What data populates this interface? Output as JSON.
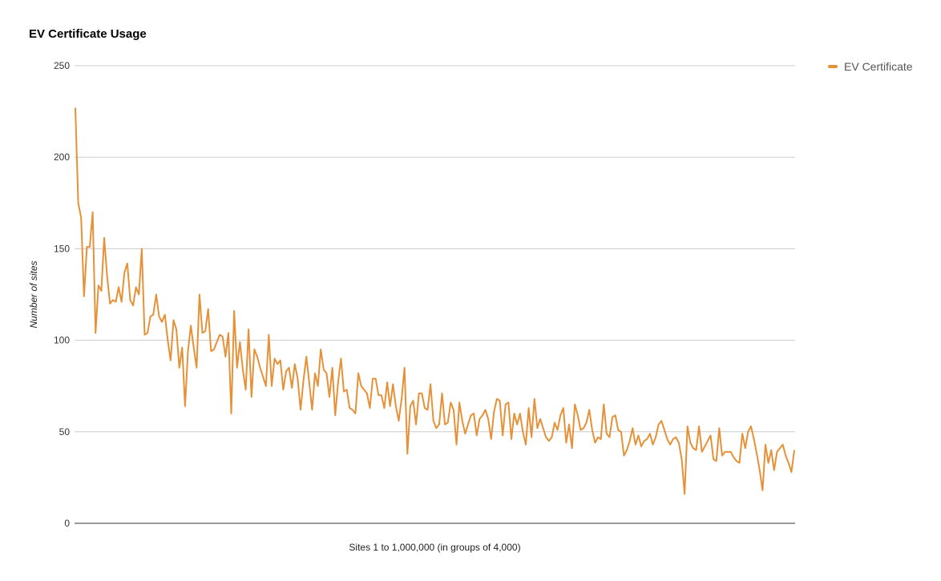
{
  "chart_data": {
    "type": "line",
    "title": "EV Certificate Usage",
    "xlabel": "Sites 1 to 1,000,000 (in groups of 4,000)",
    "ylabel": "Number of sites",
    "ylim": [
      0,
      250
    ],
    "yticks": [
      0,
      50,
      100,
      150,
      200,
      250
    ],
    "grid": true,
    "legend_position": "right",
    "series": [
      {
        "name": "EV Certificate",
        "color": "#e69138",
        "values": [
          227,
          175,
          167,
          124,
          151,
          151,
          170,
          104,
          130,
          127,
          156,
          135,
          120,
          122,
          121,
          129,
          121,
          137,
          142,
          122,
          119,
          129,
          125,
          150,
          103,
          104,
          113,
          114,
          125,
          113,
          110,
          114,
          100,
          89,
          111,
          106,
          85,
          96,
          64,
          94,
          108,
          96,
          85,
          125,
          104,
          105,
          117,
          94,
          95,
          99,
          103,
          102,
          91,
          104,
          60,
          116,
          85,
          99,
          84,
          73,
          106,
          69,
          95,
          91,
          85,
          80,
          75,
          103,
          75,
          90,
          87,
          89,
          73,
          83,
          85,
          74,
          87,
          79,
          62,
          78,
          91,
          77,
          62,
          82,
          75,
          95,
          84,
          82,
          69,
          85,
          59,
          77,
          90,
          72,
          73,
          63,
          62,
          60,
          82,
          75,
          73,
          71,
          63,
          79,
          79,
          70,
          70,
          63,
          77,
          64,
          76,
          64,
          56,
          68,
          85,
          38,
          64,
          67,
          54,
          71,
          71,
          63,
          62,
          76,
          56,
          52,
          54,
          71,
          54,
          55,
          66,
          62,
          43,
          66,
          56,
          49,
          54,
          59,
          60,
          48,
          57,
          59,
          62,
          57,
          46,
          61,
          68,
          67,
          48,
          65,
          66,
          46,
          60,
          54,
          60,
          50,
          43,
          63,
          47,
          68,
          52,
          57,
          52,
          47,
          45,
          47,
          55,
          51,
          59,
          63,
          44,
          54,
          41,
          65,
          59,
          51,
          52,
          55,
          62,
          51,
          44,
          47,
          46,
          65,
          49,
          47,
          58,
          59,
          51,
          50,
          37,
          40,
          45,
          52,
          43,
          48,
          42,
          45,
          46,
          49,
          43,
          47,
          54,
          56,
          51,
          46,
          43,
          46,
          47,
          44,
          35,
          16,
          53,
          44,
          41,
          40,
          53,
          39,
          42,
          45,
          48,
          35,
          34,
          52,
          37,
          39,
          39,
          39,
          36,
          34,
          33,
          49,
          41,
          50,
          53,
          46,
          38,
          29,
          18,
          43,
          33,
          40,
          29,
          39,
          41,
          43,
          37,
          33,
          28,
          40
        ]
      }
    ]
  }
}
